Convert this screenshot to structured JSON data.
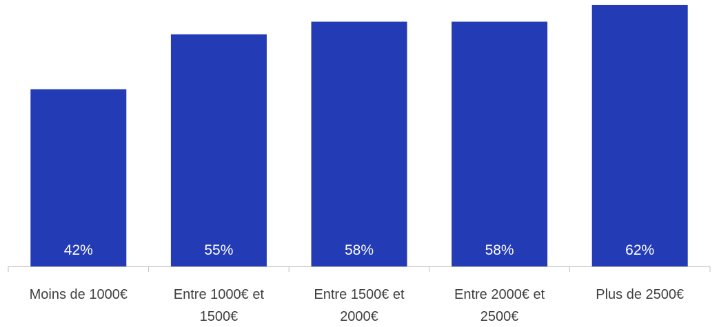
{
  "chart_data": {
    "type": "bar",
    "categories": [
      [
        "Moins de 1000€"
      ],
      [
        "Entre 1000€ et",
        "1500€"
      ],
      [
        "Entre 1500€ et",
        "2000€"
      ],
      [
        "Entre 2000€ et",
        "2500€"
      ],
      [
        "Plus de 2500€"
      ]
    ],
    "values": [
      42,
      55,
      58,
      58,
      62
    ],
    "value_labels": [
      "42%",
      "55%",
      "58%",
      "58%",
      "62%"
    ],
    "ylim": [
      0,
      62
    ],
    "title": "",
    "xlabel": "",
    "ylabel": "",
    "grid": false,
    "bar_color": "#233bb5"
  }
}
